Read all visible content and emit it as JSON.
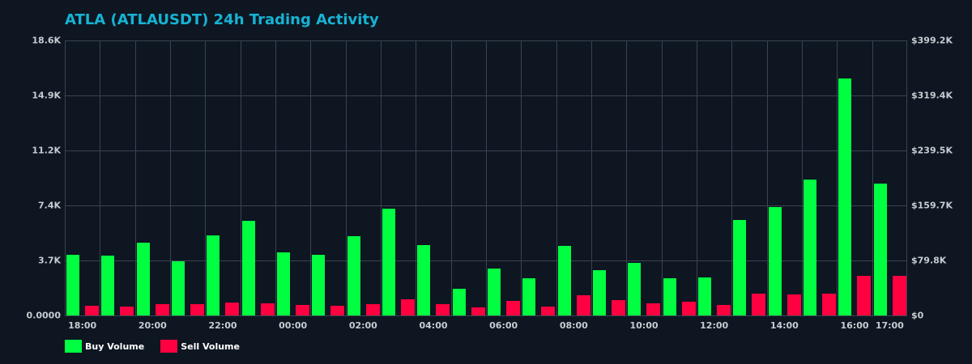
{
  "title": "ATLA (ATLAUSDT) 24h Trading Activity",
  "colors": {
    "background": "#0d1621",
    "title": "#17b3d4",
    "buy": "#00ff41",
    "sell": "#ff0040",
    "grid": "#3a4350",
    "tick_text": "#c8ccd2"
  },
  "legend": {
    "items": [
      {
        "label": "Buy Volume",
        "color": "#00ff41"
      },
      {
        "label": "Sell Volume",
        "color": "#ff0040"
      }
    ]
  },
  "axes": {
    "left": {
      "ticks": [
        "0.0000",
        "3.7K",
        "7.4K",
        "11.2K",
        "14.9K",
        "18.6K"
      ]
    },
    "right": {
      "ticks": [
        "$0",
        "$79.8K",
        "$159.7K",
        "$239.5K",
        "$319.4K",
        "$399.2K"
      ]
    },
    "x": {
      "ticks": [
        {
          "label": "18:00",
          "slot": 0
        },
        {
          "label": "20:00",
          "slot": 2
        },
        {
          "label": "22:00",
          "slot": 4
        },
        {
          "label": "00:00",
          "slot": 6
        },
        {
          "label": "02:00",
          "slot": 8
        },
        {
          "label": "04:00",
          "slot": 10
        },
        {
          "label": "06:00",
          "slot": 12
        },
        {
          "label": "08:00",
          "slot": 14
        },
        {
          "label": "10:00",
          "slot": 16
        },
        {
          "label": "12:00",
          "slot": 18
        },
        {
          "label": "14:00",
          "slot": 20
        },
        {
          "label": "16:00",
          "slot": 22
        },
        {
          "label": "17:00",
          "slot": 23
        }
      ]
    }
  },
  "chart_data": {
    "type": "bar",
    "title": "ATLA (ATLAUSDT) 24h Trading Activity",
    "xlabel": "",
    "ylabel": "",
    "ylim": [
      0,
      18600
    ],
    "y2lim": [
      0,
      399200
    ],
    "grid": true,
    "legend_position": "bottom-left",
    "categories": [
      "18:00",
      "19:00",
      "20:00",
      "21:00",
      "22:00",
      "23:00",
      "00:00",
      "01:00",
      "02:00",
      "03:00",
      "04:00",
      "05:00",
      "06:00",
      "07:00",
      "08:00",
      "09:00",
      "10:00",
      "11:00",
      "12:00",
      "13:00",
      "14:00",
      "15:00",
      "16:00",
      "17:00"
    ],
    "series": [
      {
        "name": "Buy Volume",
        "color": "#00ff41",
        "values": [
          4090,
          4030,
          4910,
          3650,
          5400,
          6380,
          4270,
          4100,
          5360,
          7220,
          4760,
          1810,
          3170,
          2520,
          4700,
          3060,
          3560,
          2520,
          2570,
          6460,
          7330,
          9190,
          16030,
          8920
        ]
      },
      {
        "name": "Sell Volume",
        "color": "#ff0040",
        "values": [
          640,
          585,
          750,
          750,
          860,
          805,
          695,
          640,
          750,
          1077,
          750,
          530,
          968,
          585,
          1351,
          1023,
          805,
          914,
          695,
          1460,
          1405,
          1460,
          2664,
          2664
        ]
      }
    ],
    "left_axis_ticks": [
      "0.0000",
      "3.7K",
      "7.4K",
      "11.2K",
      "14.9K",
      "18.6K"
    ],
    "right_axis_ticks": [
      "$0",
      "$79.8K",
      "$159.7K",
      "$239.5K",
      "$319.4K",
      "$399.2K"
    ],
    "x_tick_labels": [
      "18:00",
      "20:00",
      "22:00",
      "00:00",
      "02:00",
      "04:00",
      "06:00",
      "08:00",
      "10:00",
      "12:00",
      "14:00",
      "16:00",
      "17:00"
    ]
  }
}
